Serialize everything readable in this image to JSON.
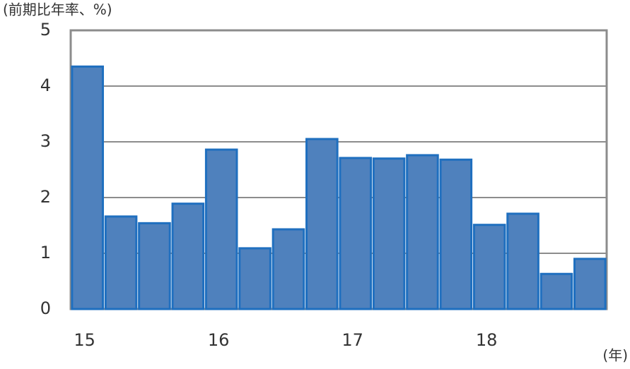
{
  "chart_data": {
    "type": "bar",
    "y_label": "(前期比年率、%)",
    "x_label": "(年)",
    "categories": [
      "15",
      null,
      null,
      null,
      "16",
      null,
      null,
      null,
      "17",
      null,
      null,
      null,
      "18",
      null,
      null,
      null
    ],
    "values": [
      4.35,
      1.66,
      1.54,
      1.89,
      2.86,
      1.09,
      1.43,
      3.05,
      2.71,
      2.7,
      2.76,
      2.68,
      1.51,
      1.71,
      0.63,
      0.9
    ],
    "color": "#4f81bd",
    "edge_color": "#1f6fbf",
    "ylim": [
      0,
      5
    ],
    "yticks": [
      0,
      1,
      2,
      3,
      4,
      5
    ],
    "grid": true
  }
}
